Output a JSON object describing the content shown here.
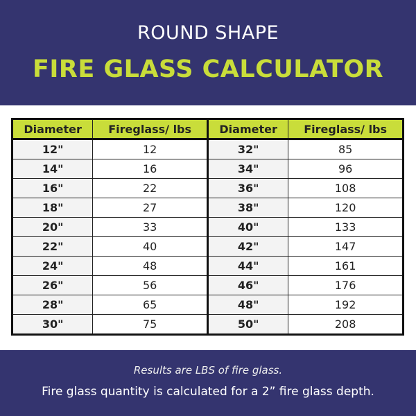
{
  "header": {
    "subtitle": "ROUND SHAPE",
    "title": "FIRE GLASS CALCULATOR"
  },
  "table": {
    "headers": [
      "Diameter",
      "Fireglass/ lbs",
      "Diameter",
      "Fireglass/ lbs"
    ],
    "rows": [
      [
        "12\"",
        "12",
        "32\"",
        "85"
      ],
      [
        "14\"",
        "16",
        "34\"",
        "96"
      ],
      [
        "16\"",
        "22",
        "36\"",
        "108"
      ],
      [
        "18\"",
        "27",
        "38\"",
        "120"
      ],
      [
        "20\"",
        "33",
        "40\"",
        "133"
      ],
      [
        "22\"",
        "40",
        "42\"",
        "147"
      ],
      [
        "24\"",
        "48",
        "44\"",
        "161"
      ],
      [
        "26\"",
        "56",
        "46\"",
        "176"
      ],
      [
        "28\"",
        "65",
        "48\"",
        "192"
      ],
      [
        "30\"",
        "75",
        "50\"",
        "208"
      ]
    ]
  },
  "footer": {
    "note": "Results are LBS of fire glass.",
    "depth_note": "Fire glass quantity is calculated for a 2” fire glass depth."
  },
  "colors": {
    "navy": "#34346f",
    "accent": "#c9dd3a"
  }
}
